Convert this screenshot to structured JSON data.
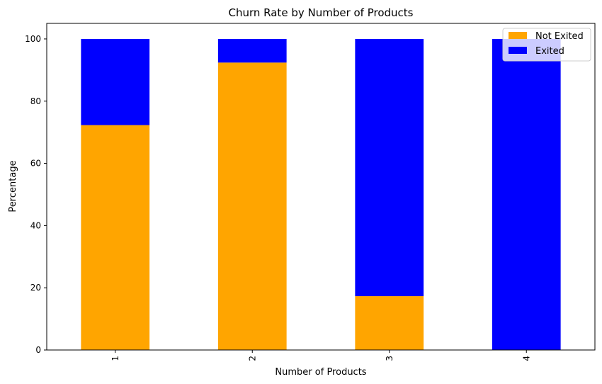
{
  "chart_data": {
    "type": "bar",
    "stacked": true,
    "title": "Churn Rate by Number of Products",
    "xlabel": "Number of Products",
    "ylabel": "Percentage",
    "categories": [
      "1",
      "2",
      "3",
      "4"
    ],
    "series": [
      {
        "name": "Not Exited",
        "color": "#FFA500",
        "values": [
          72.3,
          92.4,
          17.3,
          0
        ]
      },
      {
        "name": "Exited",
        "color": "#0000FF",
        "values": [
          27.7,
          7.6,
          82.7,
          100
        ]
      }
    ],
    "ylim": [
      0,
      105
    ],
    "yticks": [
      0,
      20,
      40,
      60,
      80,
      100
    ],
    "xtick_rotation": 90,
    "grid": false,
    "legend_position": "top-right"
  }
}
